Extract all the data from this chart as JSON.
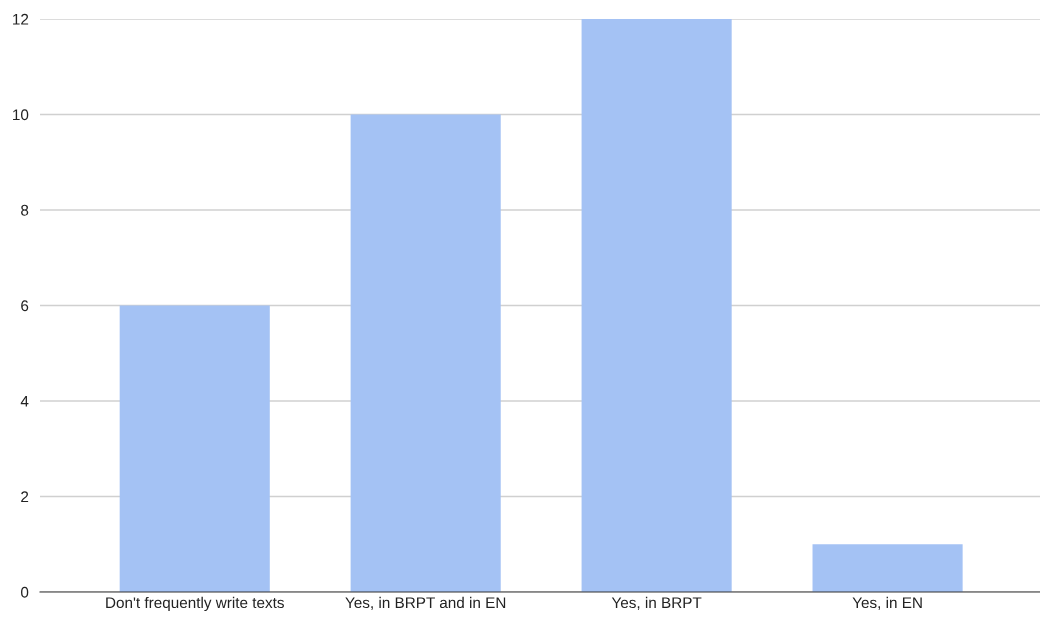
{
  "chart_data": {
    "type": "bar",
    "categories": [
      "Don't frequently write texts",
      "Yes, in BRPT and in EN",
      "Yes, in BRPT",
      "Yes, in EN"
    ],
    "values": [
      6,
      10,
      12,
      1
    ],
    "color": "#a4c2f4",
    "ylim": [
      0,
      12
    ],
    "yticks": [
      0,
      2,
      4,
      6,
      8,
      10,
      12
    ],
    "grid": "y"
  }
}
